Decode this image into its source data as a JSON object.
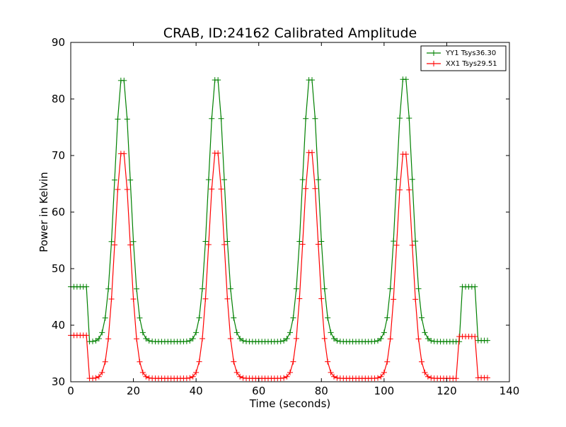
{
  "chart_data": {
    "type": "line",
    "title": "CRAB, ID:24162 Calibrated Amplitude",
    "xlabel": "Time (seconds)",
    "ylabel": "Power in Kelvin",
    "xlim": [
      0,
      140
    ],
    "ylim": [
      30,
      90
    ],
    "xticks": [
      0,
      20,
      40,
      60,
      80,
      100,
      120,
      140
    ],
    "yticks": [
      30,
      40,
      50,
      60,
      70,
      80,
      90
    ],
    "xtick_labels": [
      "0",
      "20",
      "40",
      "60",
      "80",
      "100",
      "120",
      "140"
    ],
    "ytick_labels": [
      "30",
      "40",
      "50",
      "60",
      "70",
      "80",
      "90"
    ],
    "grid": false,
    "legend_position": "upper right",
    "marker": "+",
    "series": [
      {
        "name": "YY1 Tsys36.30",
        "color": "#008000",
        "model": {
          "sample_step": 1,
          "x_max": 133,
          "baseline": 37.1,
          "baseline_segments": [
            {
              "x_start": 0,
              "x_end": 5,
              "value": 46.8
            },
            {
              "x_start": 125,
              "x_end": 129,
              "value": 46.8
            },
            {
              "x_start": 130,
              "x_end": 133,
              "value": 37.3
            }
          ],
          "peaks": [
            {
              "center": 16.5,
              "amplitude": 84.2,
              "width": 2.5
            },
            {
              "center": 46.5,
              "amplitude": 84.3,
              "width": 2.5
            },
            {
              "center": 76.5,
              "amplitude": 84.3,
              "width": 2.5
            },
            {
              "center": 106.5,
              "amplitude": 84.4,
              "width": 2.5
            }
          ]
        }
      },
      {
        "name": "XX1 Tsys29.51",
        "color": "#ff0000",
        "model": {
          "sample_step": 1,
          "x_max": 133,
          "baseline": 30.6,
          "baseline_segments": [
            {
              "x_start": 0,
              "x_end": 5,
              "value": 38.2
            },
            {
              "x_start": 124,
              "x_end": 129,
              "value": 38.0
            },
            {
              "x_start": 130,
              "x_end": 133,
              "value": 30.7
            }
          ],
          "peaks": [
            {
              "center": 16.5,
              "amplitude": 71.2,
              "width": 2.4
            },
            {
              "center": 46.5,
              "amplitude": 71.3,
              "width": 2.4
            },
            {
              "center": 76.5,
              "amplitude": 71.4,
              "width": 2.4
            },
            {
              "center": 106.5,
              "amplitude": 71.1,
              "width": 2.4
            }
          ]
        }
      }
    ]
  }
}
